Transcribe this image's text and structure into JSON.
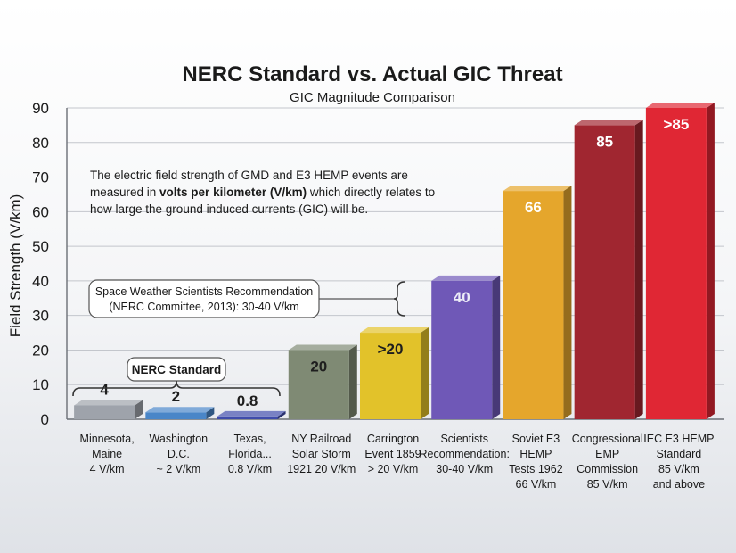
{
  "chart_data": {
    "type": "bar",
    "title": "NERC Standard vs. Actual GIC Threat",
    "subtitle": "GIC Magnitude Comparison",
    "ylabel": "Field Strength (V/km)",
    "xlabel": "",
    "ylim": [
      0,
      90
    ],
    "yticks": [
      0,
      10,
      20,
      30,
      40,
      50,
      60,
      70,
      80,
      90
    ],
    "grid": true,
    "legend": "none",
    "bars": [
      {
        "category_lines": [
          "Minnesota,",
          "Maine",
          "4 V/km"
        ],
        "value": 4,
        "label": "4",
        "color": "#9ea3ab"
      },
      {
        "category_lines": [
          "Washington",
          "D.C.",
          "~ 2 V/km"
        ],
        "value": 2,
        "label": "2",
        "color": "#4a86c8"
      },
      {
        "category_lines": [
          "Texas,",
          "Florida...",
          "0.8 V/km"
        ],
        "value": 0.8,
        "label": "0.8",
        "color": "#3f4cab"
      },
      {
        "category_lines": [
          "NY Railroad",
          "Solar Storm",
          "1921 20 V/km"
        ],
        "value": 20,
        "label": "20",
        "color": "#7f8a74"
      },
      {
        "category_lines": [
          "Carrington",
          "Event 1859",
          "> 20 V/km"
        ],
        "value": 25,
        "label": ">20",
        "color": "#e2c22a"
      },
      {
        "category_lines": [
          "Scientists",
          "Recommendation:",
          "30-40 V/km"
        ],
        "value": 40,
        "label": "40",
        "color": "#6f58b7"
      },
      {
        "category_lines": [
          "Soviet E3",
          "HEMP",
          "Tests 1962",
          "66 V/km"
        ],
        "value": 66,
        "label": "66",
        "color": "#e5a62c"
      },
      {
        "category_lines": [
          "Congressional",
          "EMP",
          "Commission",
          "85 V/km"
        ],
        "value": 85,
        "label": "85",
        "color": "#a02630"
      },
      {
        "category_lines": [
          "IEC E3 HEMP",
          "Standard",
          "85 V/km",
          "and above"
        ],
        "value": 90,
        "label": ">85",
        "color": "#e02734"
      }
    ],
    "annotations": {
      "note_lines": [
        [
          "The electric field strength of GMD and E3 HEMP events are"
        ],
        [
          "measured in ",
          "volts per kilometer (V/km)",
          " which directly relates to"
        ],
        [
          "how large the ground induced currents (GIC) will be."
        ]
      ],
      "recommendation_box": [
        "Space Weather Scientists Recommendation",
        "(NERC Committee, 2013): 30-40 V/km"
      ],
      "nerc_standard": "NERC Standard"
    }
  }
}
